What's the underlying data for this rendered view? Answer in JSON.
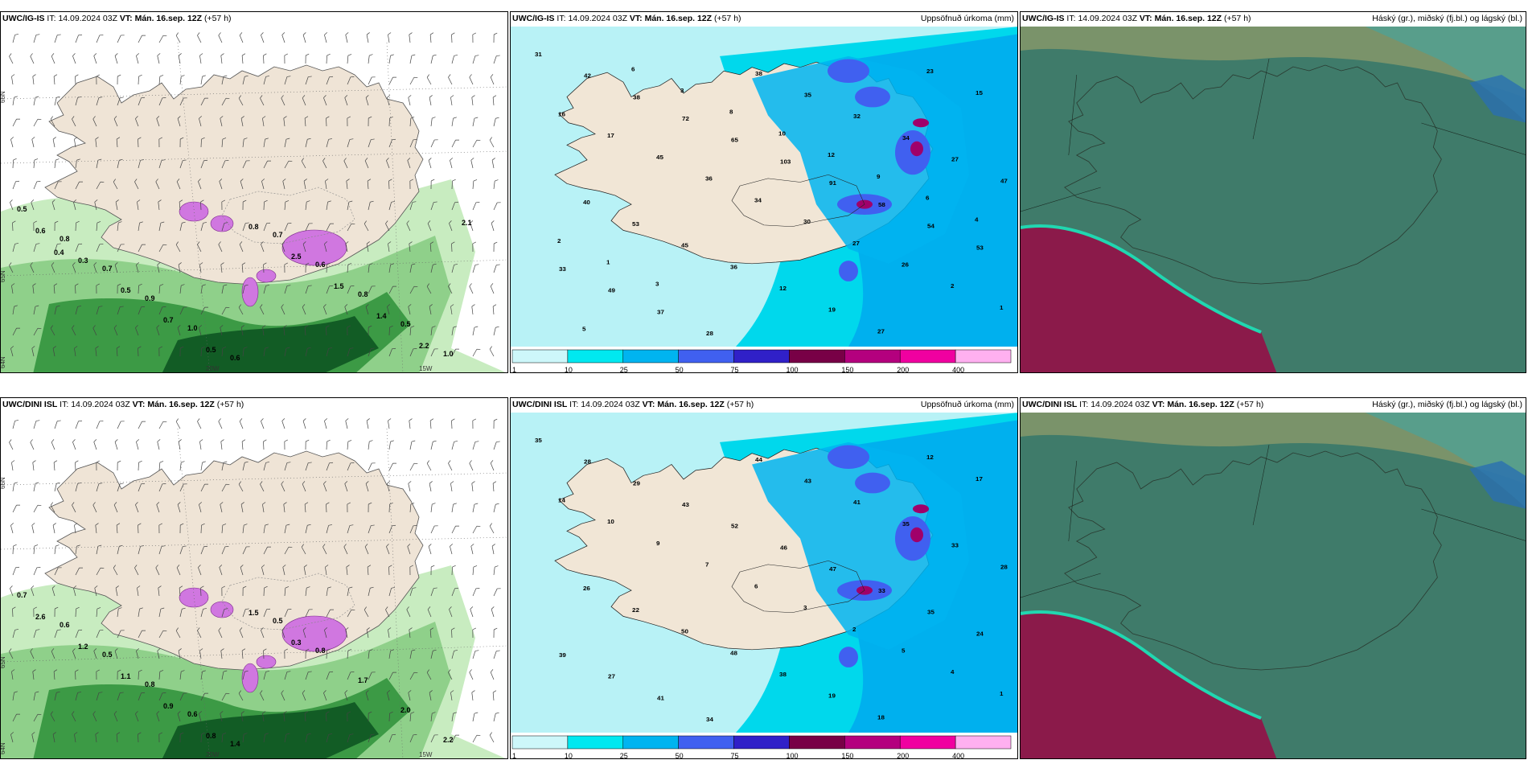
{
  "rows": [
    {
      "panels": [
        {
          "model": "UWC/IG-IS",
          "it": "14.09.2024 03Z",
          "vt": "Mán. 16.sep. 12Z",
          "lead": "(+57 h)",
          "product": ""
        },
        {
          "model": "UWC/IG-IS",
          "it": "14.09.2024 03Z",
          "vt": "Mán. 16.sep. 12Z",
          "lead": "(+57 h)",
          "product": "Uppsöfnuð úrkoma (mm)"
        },
        {
          "model": "UWC/IG-IS",
          "it": "14.09.2024 03Z",
          "vt": "Mán. 16.sep. 12Z",
          "lead": "(+57 h)",
          "product": "Háský (gr.), miðský (fj.bl.) og lágský (bl.)"
        }
      ]
    },
    {
      "panels": [
        {
          "model": "UWC/DINI ISL",
          "it": "14.09.2024 03Z",
          "vt": "Mán. 16.sep. 12Z",
          "lead": "(+57 h)",
          "product": ""
        },
        {
          "model": "UWC/DINI ISL",
          "it": "14.09.2024 03Z",
          "vt": "Mán. 16.sep. 12Z",
          "lead": "(+57 h)",
          "product": "Uppsöfnuð úrkoma (mm)"
        },
        {
          "model": "UWC/DINI ISL",
          "it": "14.09.2024 03Z",
          "vt": "Mán. 16.sep. 12Z",
          "lead": "(+57 h)",
          "product": "Háský (gr.), miðský (fj.bl.) og lágský (bl.)"
        }
      ]
    }
  ],
  "labels": {
    "it": "IT:",
    "vt": "VT:"
  },
  "graticule": {
    "lat_labels": [
      "66N",
      "65N",
      "64N"
    ],
    "lon_labels": [
      "20W",
      "15W"
    ]
  },
  "colorbar": {
    "ticks": [
      "1",
      "10",
      "25",
      "50",
      "75",
      "100",
      "150",
      "200",
      "400"
    ],
    "colors": [
      "#cdf7fa",
      "#00e8f0",
      "#00b4f0",
      "#4060f0",
      "#3020c8",
      "#780046",
      "#b4007e",
      "#f000a0",
      "#ffb0f0"
    ]
  },
  "precip_labels_top": [
    "31",
    "42",
    "38",
    "72",
    "65",
    "103",
    "91",
    "58",
    "54",
    "53",
    "33",
    "49",
    "37",
    "28",
    "38",
    "35",
    "32",
    "34",
    "27",
    "47",
    "40",
    "53",
    "45",
    "36",
    "12",
    "19",
    "27",
    "23",
    "15",
    "16",
    "17",
    "45",
    "36",
    "34",
    "30",
    "27",
    "26",
    "2",
    "1",
    "5",
    "6",
    "3",
    "8",
    "10",
    "12",
    "9",
    "6",
    "4",
    "2",
    "1",
    "3"
  ],
  "precip_labels_bottom": [
    "35",
    "28",
    "29",
    "43",
    "52",
    "46",
    "47",
    "33",
    "35",
    "24",
    "39",
    "27",
    "41",
    "34",
    "44",
    "43",
    "41",
    "35",
    "33",
    "28",
    "26",
    "22",
    "50",
    "48",
    "38",
    "19",
    "18",
    "12",
    "17",
    "14",
    "10",
    "9",
    "7",
    "6",
    "3",
    "2",
    "5",
    "4",
    "1"
  ],
  "wind_labels_top": [
    "0.5",
    "0.8",
    "0.7",
    "0.9",
    "1.0",
    "0.6",
    "0.7",
    "0.6",
    "0.8",
    "0.5",
    "1.0",
    "0.6",
    "0.3",
    "0.5",
    "0.7",
    "0.5",
    "0.8",
    "2.5",
    "1.5",
    "1.4",
    "2.2",
    "2.1",
    "0.4"
  ],
  "wind_labels_bottom": [
    "0.7",
    "0.6",
    "0.5",
    "0.8",
    "0.6",
    "1.4",
    "0.5",
    "0.8",
    "1.7",
    "2.0",
    "2.2",
    "2.6",
    "1.2",
    "1.1",
    "0.9",
    "0.8",
    "1.5",
    "0.3"
  ]
}
